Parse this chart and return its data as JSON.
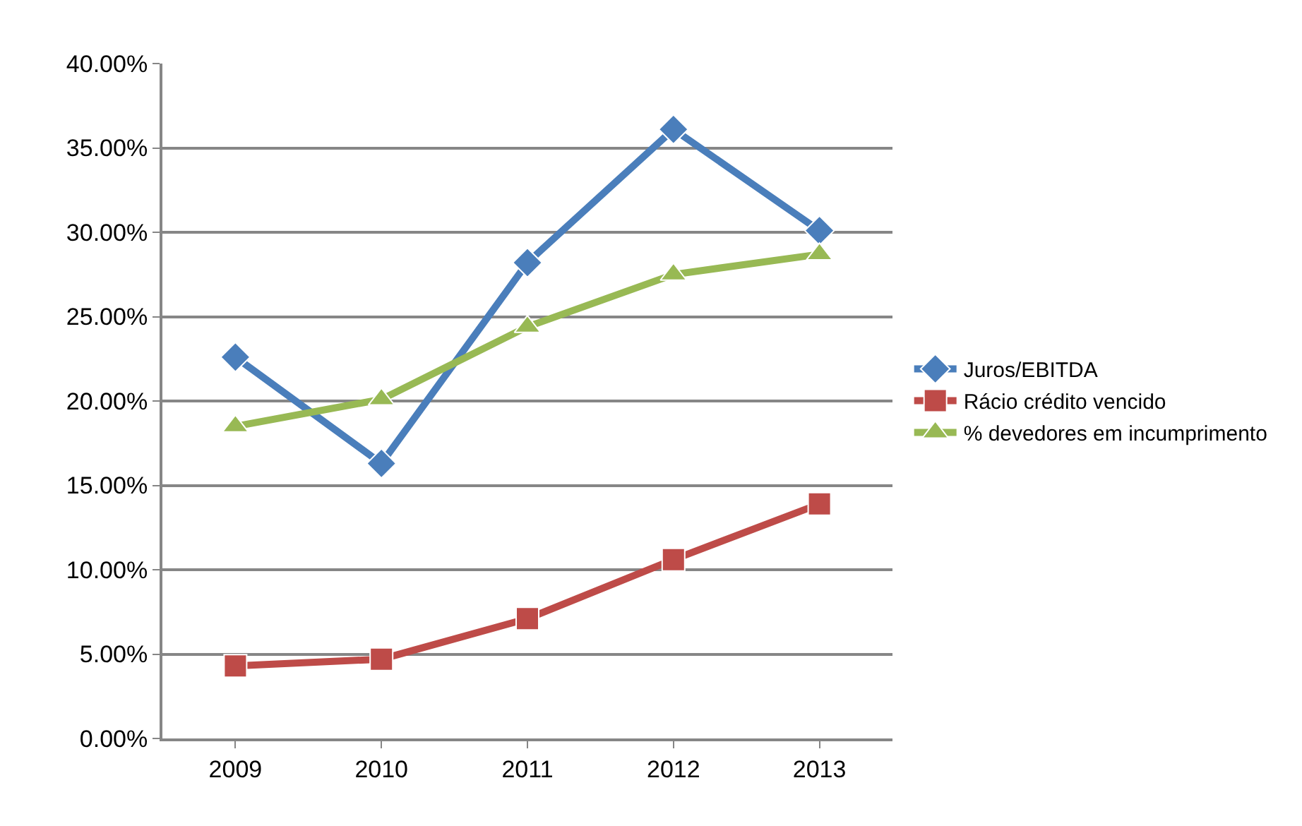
{
  "chart_data": {
    "type": "line",
    "categories": [
      "2009",
      "2010",
      "2011",
      "2012",
      "2013"
    ],
    "series": [
      {
        "name": "Juros/EBITDA",
        "color": "#4a7ebb",
        "marker": "diamond",
        "values": [
          22.6,
          16.3,
          28.2,
          36.1,
          30.1
        ]
      },
      {
        "name": "Rácio crédito vencido",
        "color": "#be4b48",
        "marker": "square",
        "values": [
          4.3,
          4.7,
          7.1,
          10.6,
          13.9
        ]
      },
      {
        "name": "% devedores em incumprimento",
        "color": "#98b954",
        "marker": "triangle",
        "values": [
          18.5,
          20.1,
          24.4,
          27.5,
          28.7
        ]
      }
    ],
    "ylim": [
      0,
      40
    ],
    "yticks": [
      {
        "value": 0,
        "label": "0.00%"
      },
      {
        "value": 5,
        "label": "5.00%"
      },
      {
        "value": 10,
        "label": "10.00%"
      },
      {
        "value": 15,
        "label": "15.00%"
      },
      {
        "value": 20,
        "label": "20.00%"
      },
      {
        "value": 25,
        "label": "25.00%"
      },
      {
        "value": 30,
        "label": "30.00%"
      },
      {
        "value": 35,
        "label": "35.00%"
      },
      {
        "value": 40,
        "label": "40.00%"
      }
    ],
    "grid": "y",
    "legend": "right",
    "line_style": "solid"
  }
}
